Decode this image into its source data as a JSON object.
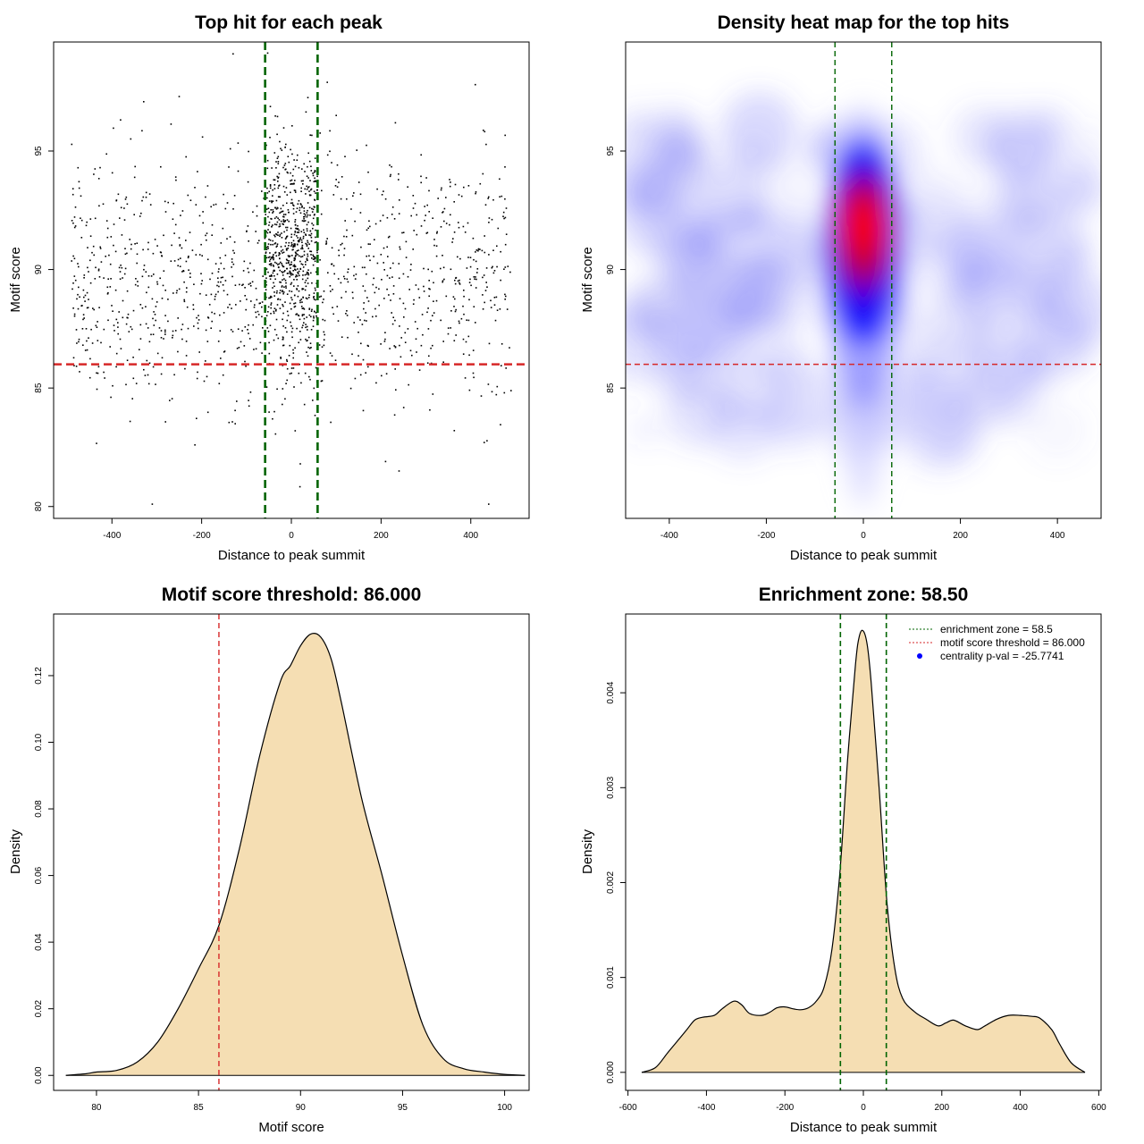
{
  "colors": {
    "threshold_red": "#d62728",
    "zone_green": "#006400",
    "density_fill": "#f5deb3",
    "points": "#000000",
    "heat_low": "#ffffff",
    "heat_mid": "#0000ff",
    "heat_high": "#ff0000",
    "legend_point": "#0000ff"
  },
  "chart_data": [
    {
      "type": "scatter",
      "title": "Top hit for each peak",
      "xlabel": "Distance to peak summit",
      "ylabel": "Motif score",
      "xlim": [
        -530,
        530
      ],
      "ylim": [
        79.5,
        99.6
      ],
      "xticks": [
        -400,
        -200,
        0,
        200,
        400
      ],
      "xtick_labels": [
        "-400",
        "-200",
        "0",
        "200",
        "400"
      ],
      "yticks": [
        80,
        85,
        90,
        95
      ],
      "ytick_labels": [
        "80",
        "85",
        "90",
        "95"
      ],
      "grid": false,
      "hlines": [
        {
          "y": 86.0,
          "color": "red",
          "style": "dashed"
        }
      ],
      "vlines": [
        {
          "x": -58.5,
          "color": "green",
          "style": "dashed"
        },
        {
          "x": 58.5,
          "color": "green",
          "style": "dashed"
        }
      ],
      "distribution": {
        "n_points": 1800,
        "central_fraction": 0.34,
        "central_x_range": [
          -58.5,
          58.5
        ],
        "background_x_range": [
          -490,
          490
        ],
        "central_score_mean": 90.9,
        "central_score_sd": 2.4,
        "background_score_mean": 89.6,
        "background_score_sd": 2.6
      },
      "points_sample": [
        {
          "x": -130,
          "y": 99.1
        },
        {
          "x": 80,
          "y": 97.9
        },
        {
          "x": 410,
          "y": 97.8
        },
        {
          "x": -250,
          "y": 97.3
        },
        {
          "x": 100,
          "y": 96.5
        },
        {
          "x": -310,
          "y": 80.1
        },
        {
          "x": 440,
          "y": 80.1
        },
        {
          "x": 20,
          "y": 81.8
        },
        {
          "x": 210,
          "y": 81.9
        },
        {
          "x": 240,
          "y": 81.5
        },
        {
          "x": -215,
          "y": 82.6
        },
        {
          "x": 430,
          "y": 82.7
        }
      ]
    },
    {
      "type": "heatmap",
      "title": "Density heat map for the top hits",
      "xlabel": "Distance to peak summit",
      "ylabel": "Motif score",
      "xlim": [
        -490,
        490
      ],
      "ylim": [
        79.5,
        99.6
      ],
      "xticks": [
        -400,
        -200,
        0,
        200,
        400
      ],
      "xtick_labels": [
        "-400",
        "-200",
        "0",
        "200",
        "400"
      ],
      "yticks": [
        85,
        90,
        95
      ],
      "ytick_labels": [
        "85",
        "90",
        "95"
      ],
      "grid": false,
      "hlines": [
        {
          "y": 86.0,
          "color": "red",
          "style": "dashed"
        }
      ],
      "vlines": [
        {
          "x": -58.5,
          "color": "green",
          "style": "dashed"
        },
        {
          "x": 58.5,
          "color": "green",
          "style": "dashed"
        }
      ],
      "color_scale": [
        "white",
        "blue",
        "red"
      ],
      "peak": {
        "x": 0,
        "y": 91.8
      }
    },
    {
      "type": "area",
      "title": "Motif score threshold: 86.000",
      "xlabel": "Motif score",
      "ylabel": "Density",
      "xlim": [
        77.9,
        101.2
      ],
      "ylim": [
        -0.0045,
        0.1385
      ],
      "xticks": [
        80,
        85,
        90,
        95,
        100
      ],
      "xtick_labels": [
        "80",
        "85",
        "90",
        "95",
        "100"
      ],
      "yticks": [
        0.0,
        0.02,
        0.04,
        0.06,
        0.08,
        0.1,
        0.12
      ],
      "ytick_labels": [
        "0.00",
        "0.02",
        "0.04",
        "0.06",
        "0.08",
        "0.10",
        "0.12"
      ],
      "grid": false,
      "vlines": [
        {
          "x": 86.0,
          "color": "red",
          "style": "dashed"
        }
      ],
      "x": [
        78.5,
        79.5,
        80,
        81,
        82,
        83,
        84,
        85,
        86,
        87,
        88,
        89,
        89.5,
        90,
        90.5,
        91,
        91.5,
        92,
        93,
        94,
        95,
        96,
        97,
        98,
        99,
        100,
        101
      ],
      "y": [
        0.0,
        0.0005,
        0.001,
        0.0015,
        0.004,
        0.01,
        0.02,
        0.032,
        0.045,
        0.068,
        0.096,
        0.118,
        0.123,
        0.129,
        0.1325,
        0.1315,
        0.125,
        0.112,
        0.083,
        0.06,
        0.036,
        0.015,
        0.005,
        0.002,
        0.001,
        0.0003,
        0.0
      ]
    },
    {
      "type": "area",
      "title": "Enrichment zone: 58.50",
      "xlabel": "Distance to peak summit",
      "ylabel": "Density",
      "xlim": [
        -606,
        606
      ],
      "ylim": [
        -0.00019,
        0.00483
      ],
      "xticks": [
        -600,
        -400,
        -200,
        0,
        200,
        400,
        600
      ],
      "xtick_labels": [
        "-600",
        "-400",
        "-200",
        "0",
        "200",
        "400",
        "600"
      ],
      "yticks": [
        0.0,
        0.001,
        0.002,
        0.003,
        0.004
      ],
      "ytick_labels": [
        "0.000",
        "0.001",
        "0.002",
        "0.003",
        "0.004"
      ],
      "grid": false,
      "vlines": [
        {
          "x": -58.5,
          "color": "green",
          "style": "dashed"
        },
        {
          "x": 58.5,
          "color": "green",
          "style": "dashed"
        }
      ],
      "legend": {
        "position": "top-right",
        "entries": [
          "enrichment zone = 58.5",
          "motif score threshold = 86.000",
          "centrality p-val = -25.7741"
        ]
      },
      "x": [
        -565,
        -530,
        -500,
        -480,
        -450,
        -430,
        -410,
        -380,
        -360,
        -330,
        -310,
        -290,
        -260,
        -240,
        -220,
        -200,
        -180,
        -160,
        -140,
        -120,
        -100,
        -80,
        -60,
        -40,
        -20,
        -10,
        0,
        10,
        20,
        40,
        60,
        80,
        100,
        130,
        160,
        190,
        210,
        230,
        260,
        290,
        310,
        340,
        370,
        400,
        430,
        450,
        480,
        500,
        530,
        565
      ],
      "y": [
        0.0,
        5e-05,
        0.0002,
        0.0003,
        0.00045,
        0.00055,
        0.00058,
        0.0006,
        0.00067,
        0.00075,
        0.00071,
        0.00062,
        0.0006,
        0.00063,
        0.00068,
        0.00069,
        0.00067,
        0.00066,
        0.00068,
        0.00075,
        0.0009,
        0.0013,
        0.0021,
        0.0033,
        0.0043,
        0.0046,
        0.00465,
        0.0045,
        0.0041,
        0.003,
        0.0018,
        0.0011,
        0.00078,
        0.00064,
        0.00056,
        0.00049,
        0.00052,
        0.00055,
        0.00049,
        0.00045,
        0.00049,
        0.00056,
        0.0006,
        0.0006,
        0.00059,
        0.00057,
        0.00045,
        0.0003,
        0.0001,
        0.0
      ]
    }
  ]
}
